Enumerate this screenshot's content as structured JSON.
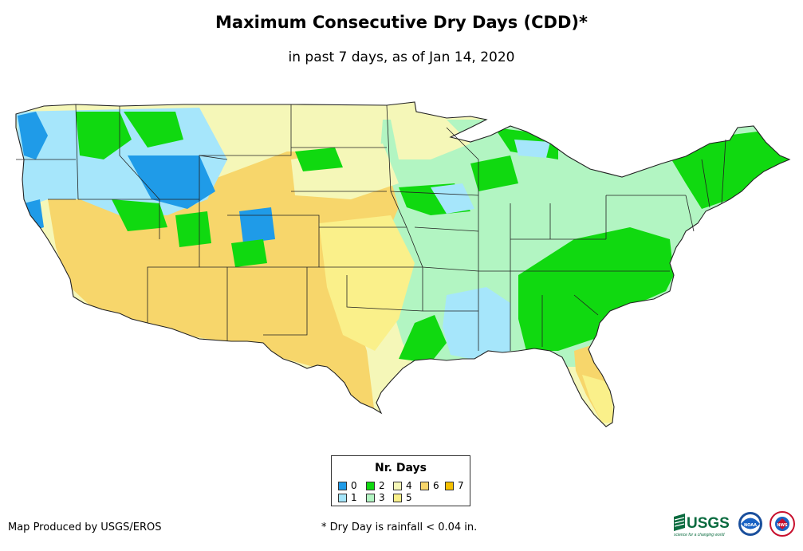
{
  "title": "Maximum Consecutive Dry Days (CDD)*",
  "subtitle": "in past 7 days, as of Jan 14, 2020",
  "legend": {
    "title": "Nr. Days",
    "items": [
      {
        "label": "0",
        "color": "#1f9be8"
      },
      {
        "label": "1",
        "color": "#a6e6fb"
      },
      {
        "label": "2",
        "color": "#10d910"
      },
      {
        "label": "3",
        "color": "#b2f5c2"
      },
      {
        "label": "4",
        "color": "#f5f7b8"
      },
      {
        "label": "5",
        "color": "#faf08a"
      },
      {
        "label": "6",
        "color": "#f7d66b"
      },
      {
        "label": "7",
        "color": "#f5c000"
      }
    ]
  },
  "credit": "Map Produced by USGS/EROS",
  "footnote": "* Dry Day is rainfall < 0.04 in.",
  "logos": {
    "usgs": "USGS",
    "usgs_tagline": "science for a changing world",
    "noaa": "NOAA",
    "nws": "NWS"
  }
}
